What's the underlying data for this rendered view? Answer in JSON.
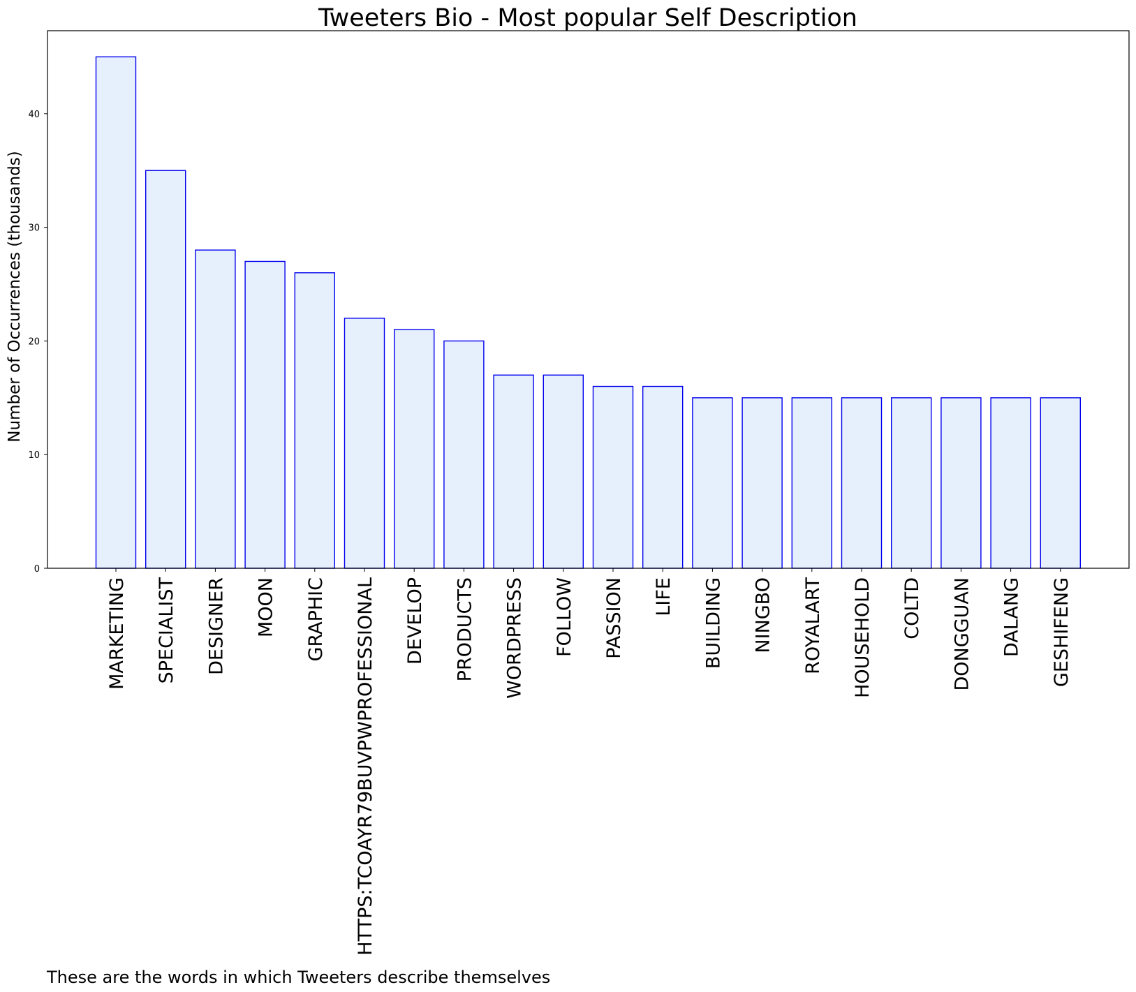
{
  "chart_data": {
    "type": "bar",
    "title": "Tweeters Bio - Most popular Self Description",
    "xlabel": "",
    "ylabel": "Number of Occurrences (thousands)",
    "caption": "These are the words in which Tweeters describe themselves",
    "categories": [
      "MARKETING",
      "SPECIALIST",
      "DESIGNER",
      "MOON",
      "GRAPHIC",
      "HTTPS:TCOAYR79BUVPWPROFESSIONAL",
      "DEVELOP",
      "PRODUCTS",
      "WORDPRESS",
      "FOLLOW",
      "PASSION",
      "LIFE",
      "BUILDING",
      "NINGBO",
      "ROYALART",
      "HOUSEHOLD",
      "COLTD",
      "DONGGUAN",
      "DALANG",
      "GESHIFENG"
    ],
    "values": [
      45,
      35,
      28,
      27,
      26,
      22,
      21,
      20,
      17,
      17,
      16,
      16,
      15,
      15,
      15,
      15,
      15,
      15,
      15,
      15
    ],
    "ylim": [
      0,
      47.3
    ],
    "yticks": [
      0,
      10,
      20,
      30,
      40
    ],
    "grid": false,
    "colors": {
      "bar_fill": "#e6f0fc",
      "bar_edge": "#0000ee"
    }
  }
}
